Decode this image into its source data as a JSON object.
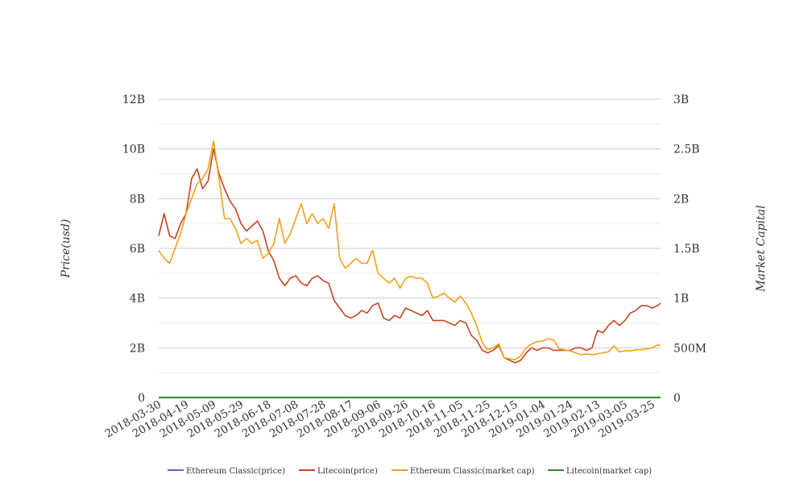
{
  "chart_data": {
    "type": "line",
    "title": "",
    "ylabel": "Price(usd)",
    "y2label": "Market Capital",
    "ylim": [
      0,
      12000000000
    ],
    "y2lim": [
      0,
      3000000000
    ],
    "yticks": [
      "0",
      "2B",
      "4B",
      "6B",
      "8B",
      "10B",
      "12B"
    ],
    "y2ticks": [
      "0",
      "500M",
      "1B",
      "1.5B",
      "2B",
      "2.5B",
      "3B"
    ],
    "x_tick_labels": [
      "2018-03-30",
      "2018-04-19",
      "2018-05-09",
      "2018-05-29",
      "2018-06-18",
      "2018-07-08",
      "2018-07-28",
      "2018-08-17",
      "2018-09-06",
      "2018-09-26",
      "2018-10-16",
      "2018-11-05",
      "2018-11-25",
      "2018-12-15",
      "2019-01-04",
      "2019-01-24",
      "2019-02-13",
      "2019-03-05",
      "2019-03-25"
    ],
    "grid": true,
    "legend_position": "bottom",
    "series": [
      {
        "name": "Ethereum Classic(price)",
        "color": "#4a6fb5",
        "axis": "left",
        "x": [
          "2018-03-30",
          "2019-03-31"
        ],
        "y": [
          15,
          8
        ]
      },
      {
        "name": "Litecoin(price)",
        "color": "#c9421e",
        "axis": "left",
        "x": [
          "2018-03-30",
          "2018-04-03",
          "2018-04-07",
          "2018-04-11",
          "2018-04-15",
          "2018-04-19",
          "2018-04-23",
          "2018-04-27",
          "2018-05-01",
          "2018-05-05",
          "2018-05-09",
          "2018-05-13",
          "2018-05-17",
          "2018-05-21",
          "2018-05-25",
          "2018-05-29",
          "2018-06-02",
          "2018-06-06",
          "2018-06-10",
          "2018-06-14",
          "2018-06-18",
          "2018-06-22",
          "2018-06-26",
          "2018-06-30",
          "2018-07-04",
          "2018-07-08",
          "2018-07-12",
          "2018-07-16",
          "2018-07-20",
          "2018-07-24",
          "2018-07-28",
          "2018-08-01",
          "2018-08-05",
          "2018-08-09",
          "2018-08-13",
          "2018-08-17",
          "2018-08-21",
          "2018-08-25",
          "2018-08-29",
          "2018-09-02",
          "2018-09-06",
          "2018-09-10",
          "2018-09-14",
          "2018-09-18",
          "2018-09-22",
          "2018-09-26",
          "2018-09-30",
          "2018-10-04",
          "2018-10-08",
          "2018-10-12",
          "2018-10-16",
          "2018-10-20",
          "2018-10-24",
          "2018-10-28",
          "2018-11-01",
          "2018-11-05",
          "2018-11-09",
          "2018-11-13",
          "2018-11-17",
          "2018-11-21",
          "2018-11-25",
          "2018-11-29",
          "2018-12-03",
          "2018-12-07",
          "2018-12-11",
          "2018-12-15",
          "2018-12-19",
          "2018-12-23",
          "2018-12-27",
          "2018-12-31",
          "2019-01-04",
          "2019-01-08",
          "2019-01-12",
          "2019-01-16",
          "2019-01-20",
          "2019-01-24",
          "2019-01-28",
          "2019-02-01",
          "2019-02-05",
          "2019-02-09",
          "2019-02-13",
          "2019-02-17",
          "2019-02-21",
          "2019-02-25",
          "2019-03-01",
          "2019-03-05",
          "2019-03-09",
          "2019-03-13",
          "2019-03-17",
          "2019-03-21",
          "2019-03-25",
          "2019-03-29",
          "2019-03-31"
        ],
        "y": [
          6500000000,
          7400000000,
          6500000000,
          6400000000,
          7000000000,
          7400000000,
          8800000000,
          9200000000,
          8400000000,
          8700000000,
          10000000000,
          9000000000,
          8400000000,
          7900000000,
          7600000000,
          7000000000,
          6700000000,
          6900000000,
          7100000000,
          6700000000,
          5900000000,
          5500000000,
          4800000000,
          4500000000,
          4800000000,
          4900000000,
          4600000000,
          4500000000,
          4800000000,
          4900000000,
          4700000000,
          4600000000,
          3900000000,
          3600000000,
          3300000000,
          3200000000,
          3300000000,
          3500000000,
          3400000000,
          3700000000,
          3800000000,
          3200000000,
          3100000000,
          3300000000,
          3200000000,
          3600000000,
          3500000000,
          3400000000,
          3300000000,
          3500000000,
          3100000000,
          3100000000,
          3100000000,
          3000000000,
          2900000000,
          3100000000,
          3000000000,
          2500000000,
          2300000000,
          1900000000,
          1800000000,
          1900000000,
          2100000000,
          1600000000,
          1500000000,
          1400000000,
          1500000000,
          1800000000,
          2000000000,
          1900000000,
          2000000000,
          2000000000,
          1900000000,
          1900000000,
          1900000000,
          1900000000,
          2000000000,
          2000000000,
          1900000000,
          2000000000,
          2700000000,
          2600000000,
          2900000000,
          3100000000,
          2900000000,
          3100000000,
          3400000000,
          3500000000,
          3700000000,
          3700000000,
          3600000000,
          3700000000,
          3800000000
        ]
      },
      {
        "name": "Ethereum Classic(market cap)",
        "color": "#f0a11a",
        "axis": "right",
        "x": [
          "2018-03-30",
          "2018-04-03",
          "2018-04-07",
          "2018-04-11",
          "2018-04-15",
          "2018-04-19",
          "2018-04-23",
          "2018-04-27",
          "2018-05-01",
          "2018-05-05",
          "2018-05-09",
          "2018-05-13",
          "2018-05-17",
          "2018-05-21",
          "2018-05-25",
          "2018-05-29",
          "2018-06-02",
          "2018-06-06",
          "2018-06-10",
          "2018-06-14",
          "2018-06-18",
          "2018-06-22",
          "2018-06-26",
          "2018-06-30",
          "2018-07-04",
          "2018-07-08",
          "2018-07-12",
          "2018-07-16",
          "2018-07-20",
          "2018-07-24",
          "2018-07-28",
          "2018-08-01",
          "2018-08-05",
          "2018-08-09",
          "2018-08-13",
          "2018-08-17",
          "2018-08-21",
          "2018-08-25",
          "2018-08-29",
          "2018-09-02",
          "2018-09-06",
          "2018-09-10",
          "2018-09-14",
          "2018-09-18",
          "2018-09-22",
          "2018-09-26",
          "2018-09-30",
          "2018-10-04",
          "2018-10-08",
          "2018-10-12",
          "2018-10-16",
          "2018-10-20",
          "2018-10-24",
          "2018-10-28",
          "2018-11-01",
          "2018-11-05",
          "2018-11-09",
          "2018-11-13",
          "2018-11-17",
          "2018-11-21",
          "2018-11-25",
          "2018-11-29",
          "2018-12-03",
          "2018-12-07",
          "2018-12-11",
          "2018-12-15",
          "2018-12-19",
          "2018-12-23",
          "2018-12-27",
          "2018-12-31",
          "2019-01-04",
          "2019-01-08",
          "2019-01-12",
          "2019-01-16",
          "2019-01-20",
          "2019-01-24",
          "2019-01-28",
          "2019-02-01",
          "2019-02-05",
          "2019-02-09",
          "2019-02-13",
          "2019-02-17",
          "2019-02-21",
          "2019-02-25",
          "2019-03-01",
          "2019-03-05",
          "2019-03-09",
          "2019-03-13",
          "2019-03-17",
          "2019-03-21",
          "2019-03-25",
          "2019-03-29",
          "2019-03-31"
        ],
        "y": [
          1480000000,
          1400000000,
          1350000000,
          1500000000,
          1650000000,
          1850000000,
          2000000000,
          2150000000,
          2200000000,
          2300000000,
          2580000000,
          2200000000,
          1800000000,
          1800000000,
          1700000000,
          1550000000,
          1600000000,
          1550000000,
          1580000000,
          1400000000,
          1450000000,
          1550000000,
          1800000000,
          1550000000,
          1650000000,
          1800000000,
          1950000000,
          1750000000,
          1850000000,
          1750000000,
          1800000000,
          1700000000,
          1950000000,
          1400000000,
          1300000000,
          1350000000,
          1400000000,
          1350000000,
          1350000000,
          1480000000,
          1250000000,
          1200000000,
          1150000000,
          1200000000,
          1100000000,
          1200000000,
          1220000000,
          1200000000,
          1200000000,
          1150000000,
          1000000000,
          1020000000,
          1050000000,
          1000000000,
          960000000,
          1020000000,
          950000000,
          850000000,
          720000000,
          550000000,
          480000000,
          500000000,
          540000000,
          400000000,
          390000000,
          380000000,
          420000000,
          500000000,
          540000000,
          560000000,
          570000000,
          590000000,
          580000000,
          490000000,
          480000000,
          470000000,
          450000000,
          430000000,
          440000000,
          430000000,
          440000000,
          450000000,
          460000000,
          520000000,
          460000000,
          470000000,
          470000000,
          480000000,
          480000000,
          490000000,
          500000000,
          530000000,
          525000000
        ]
      },
      {
        "name": "Litecoin(market cap)",
        "color": "#2e8b2e",
        "axis": "right",
        "x": [
          "2018-03-30",
          "2019-03-31"
        ],
        "y": [
          800000,
          800000
        ]
      }
    ]
  }
}
